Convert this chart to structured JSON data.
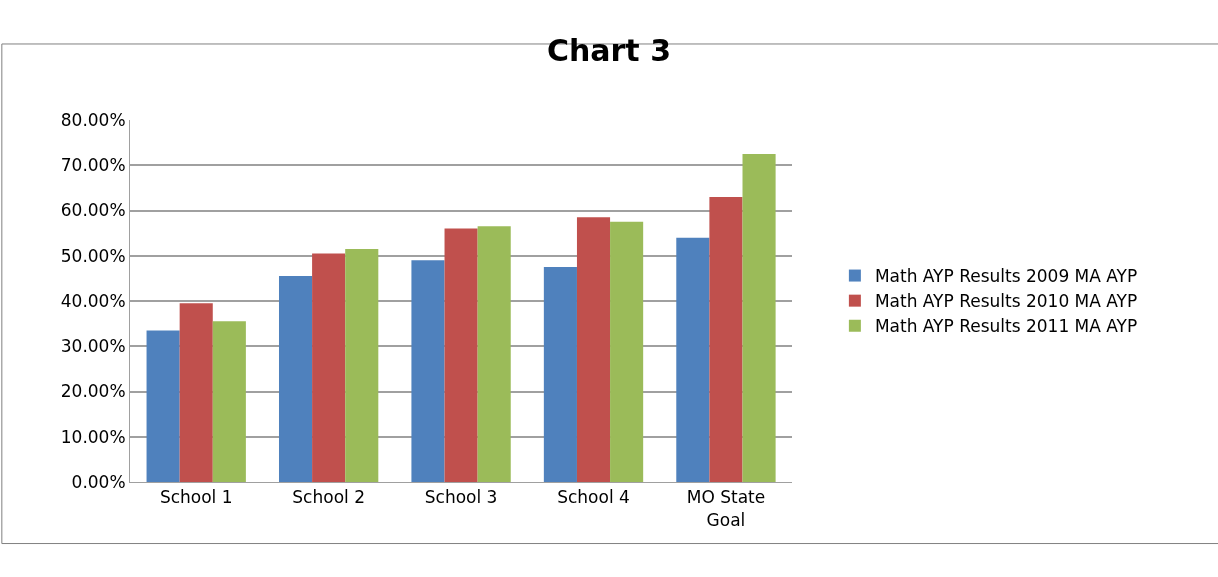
{
  "chart_data": {
    "type": "bar",
    "title": "Chart 3",
    "categories": [
      "School 1",
      "School 2",
      "School 3",
      "School 4",
      "MO State Goal"
    ],
    "series": [
      {
        "name": "Math AYP Results 2009 MA AYP",
        "color": "#4f81bd",
        "values": [
          33.5,
          45.5,
          49,
          47.5,
          54
        ]
      },
      {
        "name": "Math AYP Results 2010 MA AYP",
        "color": "#c0504d",
        "values": [
          39.5,
          50.5,
          56,
          58.5,
          63
        ]
      },
      {
        "name": "Math AYP Results 2011 MA AYP",
        "color": "#9bbb59",
        "values": [
          35.5,
          51.5,
          56.5,
          57.5,
          72.5
        ]
      }
    ],
    "ylim": [
      0,
      80
    ],
    "yticks": [
      {
        "value": 0,
        "label": "0.00%"
      },
      {
        "value": 10,
        "label": "10.00%"
      },
      {
        "value": 20,
        "label": "20.00%"
      },
      {
        "value": 30,
        "label": "30.00%"
      },
      {
        "value": 40,
        "label": "40.00%"
      },
      {
        "value": 50,
        "label": "50.00%"
      },
      {
        "value": 60,
        "label": "60.00%"
      },
      {
        "value": 70,
        "label": "70.00%"
      },
      {
        "value": 80,
        "label": "80.00%"
      }
    ],
    "grid": "y",
    "legend": "right"
  }
}
